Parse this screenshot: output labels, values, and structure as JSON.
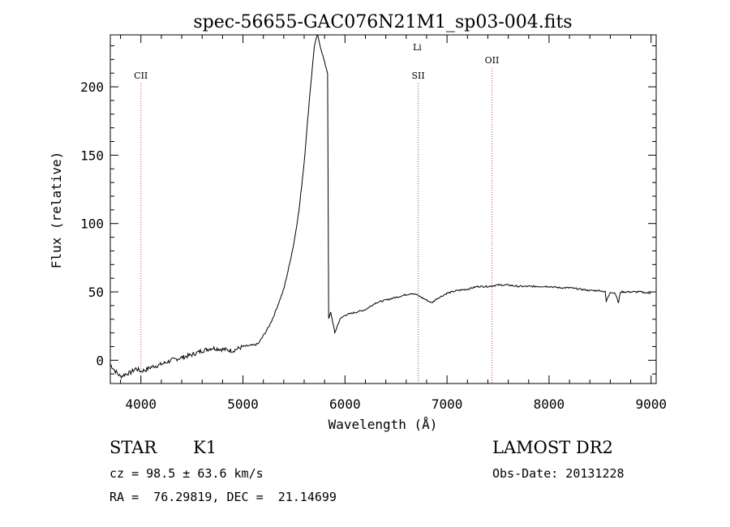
{
  "chart_data": {
    "type": "line",
    "title": "spec-56655-GAC076N21M1_sp03-004.fits",
    "xlabel": "Wavelength (Å)",
    "ylabel": "Flux (relative)",
    "xlim": [
      3700,
      9050
    ],
    "ylim": [
      -17,
      238
    ],
    "xticks": [
      4000,
      5000,
      6000,
      7000,
      8000,
      9000
    ],
    "yticks": [
      0,
      50,
      100,
      150,
      200
    ],
    "grid": false,
    "line_color": "#000000",
    "series": [
      {
        "x": [
          3700,
          3750,
          3800,
          3850,
          3900,
          3950,
          4000,
          4050,
          4100,
          4200,
          4300,
          4400,
          4500,
          4600,
          4700,
          4800,
          4900,
          5000,
          5100,
          5150,
          5200,
          5250,
          5300,
          5350,
          5400,
          5450,
          5500,
          5550,
          5600,
          5650,
          5700,
          5730,
          5750,
          5800,
          5830,
          5840,
          5860,
          5880,
          5900,
          5950,
          6000,
          6100,
          6200,
          6300,
          6400,
          6500,
          6600,
          6650,
          6700,
          6750,
          6800,
          6850,
          6900,
          6950,
          7000,
          7100,
          7200,
          7300,
          7400,
          7500,
          7600,
          7700,
          7800,
          7900,
          8000,
          8100,
          8200,
          8300,
          8400,
          8450,
          8500,
          8550,
          8560,
          8600,
          8650,
          8680,
          8700,
          8800,
          8900,
          8980,
          9000
        ],
        "y": [
          -3,
          -8,
          -12,
          -10,
          -9,
          -6,
          -8,
          -7,
          -5,
          -3,
          0,
          2,
          4,
          7,
          9,
          8,
          7,
          10,
          11,
          12,
          18,
          24,
          32,
          42,
          52,
          68,
          86,
          110,
          145,
          190,
          230,
          238,
          232,
          218,
          210,
          30,
          35,
          28,
          20,
          30,
          33,
          35,
          37,
          42,
          44,
          46,
          48,
          49,
          48,
          46,
          44,
          42,
          45,
          47,
          49,
          51,
          52,
          54,
          54,
          55,
          55,
          54,
          54,
          54,
          54,
          53,
          53,
          52,
          51,
          51,
          51,
          50,
          43,
          50,
          49,
          42,
          50,
          50,
          50,
          49,
          50
        ]
      }
    ],
    "annotations": {
      "lines": [
        {
          "label": "CII",
          "x": 4000,
          "color": "#d04040"
        },
        {
          "label": "Li",
          "x": 6708,
          "color": "#606060"
        },
        {
          "label": "SII",
          "x": 6718,
          "color": "#606060"
        },
        {
          "label": "OII",
          "x": 7440,
          "color": "#d04040"
        }
      ]
    }
  },
  "info": {
    "object_type": "STAR",
    "subclass": "K1",
    "survey": "LAMOST DR2",
    "cz": "cz = 98.5 ± 63.6 km/s",
    "obs_date": "Obs-Date: 20131228",
    "coords": "RA =  76.29819, DEC =  21.14699"
  }
}
